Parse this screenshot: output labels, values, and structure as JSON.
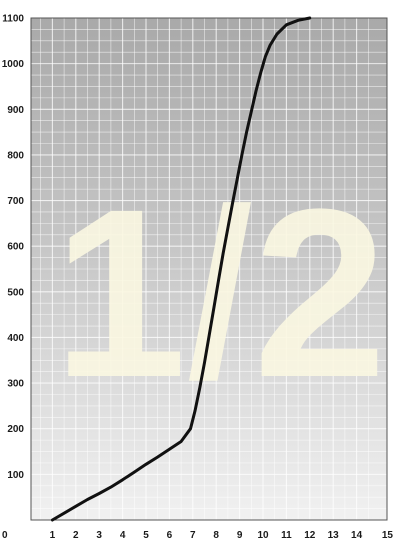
{
  "chart_data": {
    "type": "line",
    "title": "",
    "xlabel": "",
    "ylabel": "",
    "xlim": [
      0,
      15
    ],
    "ylim": [
      0,
      1100
    ],
    "x_ticks": [
      0,
      1,
      2,
      3,
      4,
      5,
      6,
      7,
      8,
      9,
      10,
      11,
      12,
      13,
      14,
      15
    ],
    "x_tick_labels": [
      "0",
      "1",
      "2",
      "3",
      "4",
      "5",
      "6",
      "7",
      "8",
      "9",
      "10",
      "11",
      "12",
      "13",
      "14",
      "15"
    ],
    "y_ticks": [
      100,
      200,
      300,
      400,
      500,
      600,
      700,
      800,
      900,
      1000,
      1100
    ],
    "y_tick_labels": [
      "100",
      "200",
      "300",
      "400",
      "500",
      "600",
      "700",
      "800",
      "900",
      "1000",
      "1100"
    ],
    "grid": true,
    "overlay_text": "1/2",
    "colors": {
      "line": "#111111",
      "grid": "#ffffff",
      "bg_top": "#a9a9a9",
      "bg_bottom": "#f1f1f1",
      "overlay": "#fbf8e2"
    },
    "series": [
      {
        "x": [
          1.0,
          1.5,
          2.0,
          2.5,
          3.0,
          3.5,
          4.0,
          4.5,
          5.0,
          5.5,
          6.0,
          6.5,
          6.9,
          7.1,
          7.3,
          7.5,
          7.7,
          7.9,
          8.1,
          8.3,
          8.5,
          8.7,
          8.9,
          9.1,
          9.3,
          9.5,
          9.7,
          9.9,
          10.1,
          10.3,
          10.6,
          11.0,
          11.5,
          12.0
        ],
        "y": [
          0,
          15,
          30,
          45,
          58,
          72,
          88,
          105,
          122,
          138,
          155,
          172,
          200,
          240,
          290,
          345,
          405,
          465,
          525,
          585,
          640,
          695,
          748,
          800,
          850,
          895,
          940,
          980,
          1015,
          1040,
          1065,
          1085,
          1095,
          1100
        ]
      }
    ]
  }
}
